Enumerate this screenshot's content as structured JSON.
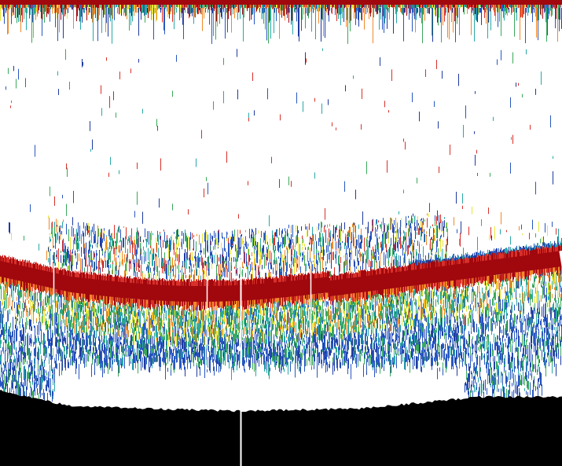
{
  "image": {
    "kind": "echogram",
    "description_free": true
  },
  "palette": {
    "background": "#ffffff",
    "strong_echo": "#a0080e",
    "strong_echo_edge": "#d8302a",
    "orange": "#f08a28",
    "yellow": "#e6e636",
    "green": "#3aa85a",
    "teal": "#28a8a8",
    "blue": "#2856c0",
    "deep_blue": "#1e3aa0",
    "seabed": "#000000",
    "gap_lines": "#ffffff"
  }
}
